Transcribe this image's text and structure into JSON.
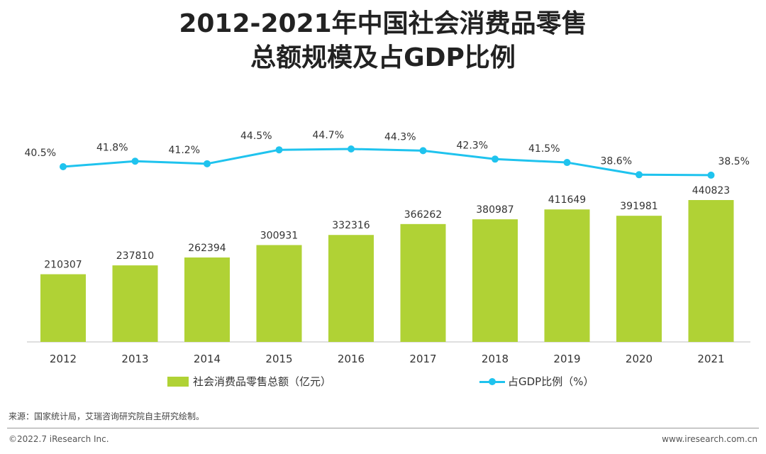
{
  "title_line1": "2012-2021年中国社会消费品零售",
  "title_line2": "总额规模及占GDP比例",
  "chart_data": {
    "type": "bar",
    "categories": [
      "2012",
      "2013",
      "2014",
      "2015",
      "2016",
      "2017",
      "2018",
      "2019",
      "2020",
      "2021"
    ],
    "series": [
      {
        "name": "社会消费品零售总额（亿元）",
        "kind": "bar",
        "color": "#b0d235",
        "values": [
          210307,
          237810,
          262394,
          300931,
          332316,
          366262,
          380987,
          411649,
          391981,
          440823
        ]
      },
      {
        "name": "占GDP比例（%）",
        "kind": "line",
        "color": "#1fc3ee",
        "values": [
          40.5,
          41.8,
          41.2,
          44.5,
          44.7,
          44.3,
          42.3,
          41.5,
          38.6,
          38.5
        ],
        "labels": [
          "40.5%",
          "41.8%",
          "41.2%",
          "44.5%",
          "44.7%",
          "44.3%",
          "42.3%",
          "41.5%",
          "38.6%",
          "38.5%"
        ]
      }
    ],
    "bar_ylim": [
      0,
      500000
    ],
    "line_ylim": [
      0,
      52
    ],
    "grid": false,
    "legend_position": "bottom"
  },
  "legend": {
    "bar_label": "社会消费品零售总额（亿元）",
    "line_label": "占GDP比例（%）"
  },
  "source": "来源：国家统计局，艾瑞咨询研究院自主研究绘制。",
  "copyright": "©2022.7 iResearch Inc.",
  "website": "www.iresearch.com.cn"
}
